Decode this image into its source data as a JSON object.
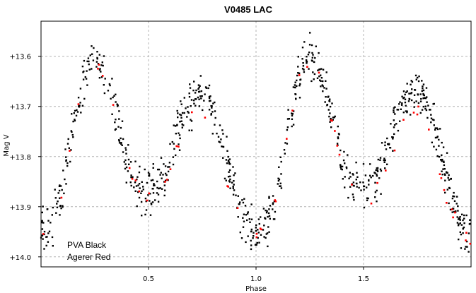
{
  "chart_data": {
    "type": "scatter",
    "title": "V0485 LAC",
    "xlabel": "Phase",
    "ylabel": "Mag  V",
    "xlim": [
      0.0,
      2.0
    ],
    "ylim": [
      13.53,
      14.02
    ],
    "y_inverted": true,
    "grid": true,
    "x_ticks": [
      0.5,
      1.0,
      1.5
    ],
    "x_tick_labels": [
      "0.5",
      "1.0",
      "1.5"
    ],
    "y_ticks": [
      13.6,
      13.7,
      13.8,
      13.9,
      14.0
    ],
    "y_tick_labels": [
      "+13.6",
      "+13.7",
      "+13.8",
      "+13.9",
      "+14.0"
    ],
    "legend": {
      "placement": "bottom-left",
      "lines": [
        "PVA Black",
        "Agerer Red"
      ]
    },
    "colors": {
      "black_series": "#000000",
      "red_series": "#ff0000",
      "grid": "#b4b4b4"
    },
    "series": [
      {
        "label_in_legend": "PVA Black",
        "color": "#000000",
        "light_curve": {
          "x": [
            0.0,
            0.05,
            0.1,
            0.15,
            0.2,
            0.25,
            0.3,
            0.35,
            0.4,
            0.45,
            0.5,
            0.55,
            0.6,
            0.65,
            0.7,
            0.75,
            0.8,
            0.85,
            0.9,
            0.95,
            1.0
          ],
          "y": [
            13.95,
            13.93,
            13.87,
            13.74,
            13.64,
            13.6,
            13.63,
            13.71,
            13.81,
            13.86,
            13.87,
            13.86,
            13.8,
            13.73,
            13.69,
            13.67,
            13.7,
            13.78,
            13.87,
            13.93,
            13.96
          ]
        },
        "scatter_mag": 0.022,
        "approx_points": 900
      },
      {
        "label_in_legend": "Agerer Red",
        "color": "#ff0000",
        "light_curve": {
          "x": [
            0.0,
            0.05,
            0.1,
            0.15,
            0.2,
            0.25,
            0.3,
            0.35,
            0.4,
            0.45,
            0.5,
            0.55,
            0.6,
            0.65,
            0.7,
            0.75,
            0.8,
            0.85,
            0.9,
            0.95,
            1.0
          ],
          "y": [
            13.96,
            13.93,
            13.87,
            13.74,
            13.64,
            13.61,
            13.64,
            13.72,
            13.82,
            13.87,
            13.88,
            13.88,
            13.83,
            13.77,
            13.72,
            13.71,
            13.75,
            13.83,
            13.9,
            13.94,
            13.97
          ]
        },
        "scatter_mag": 0.008,
        "approx_points": 60
      }
    ]
  }
}
